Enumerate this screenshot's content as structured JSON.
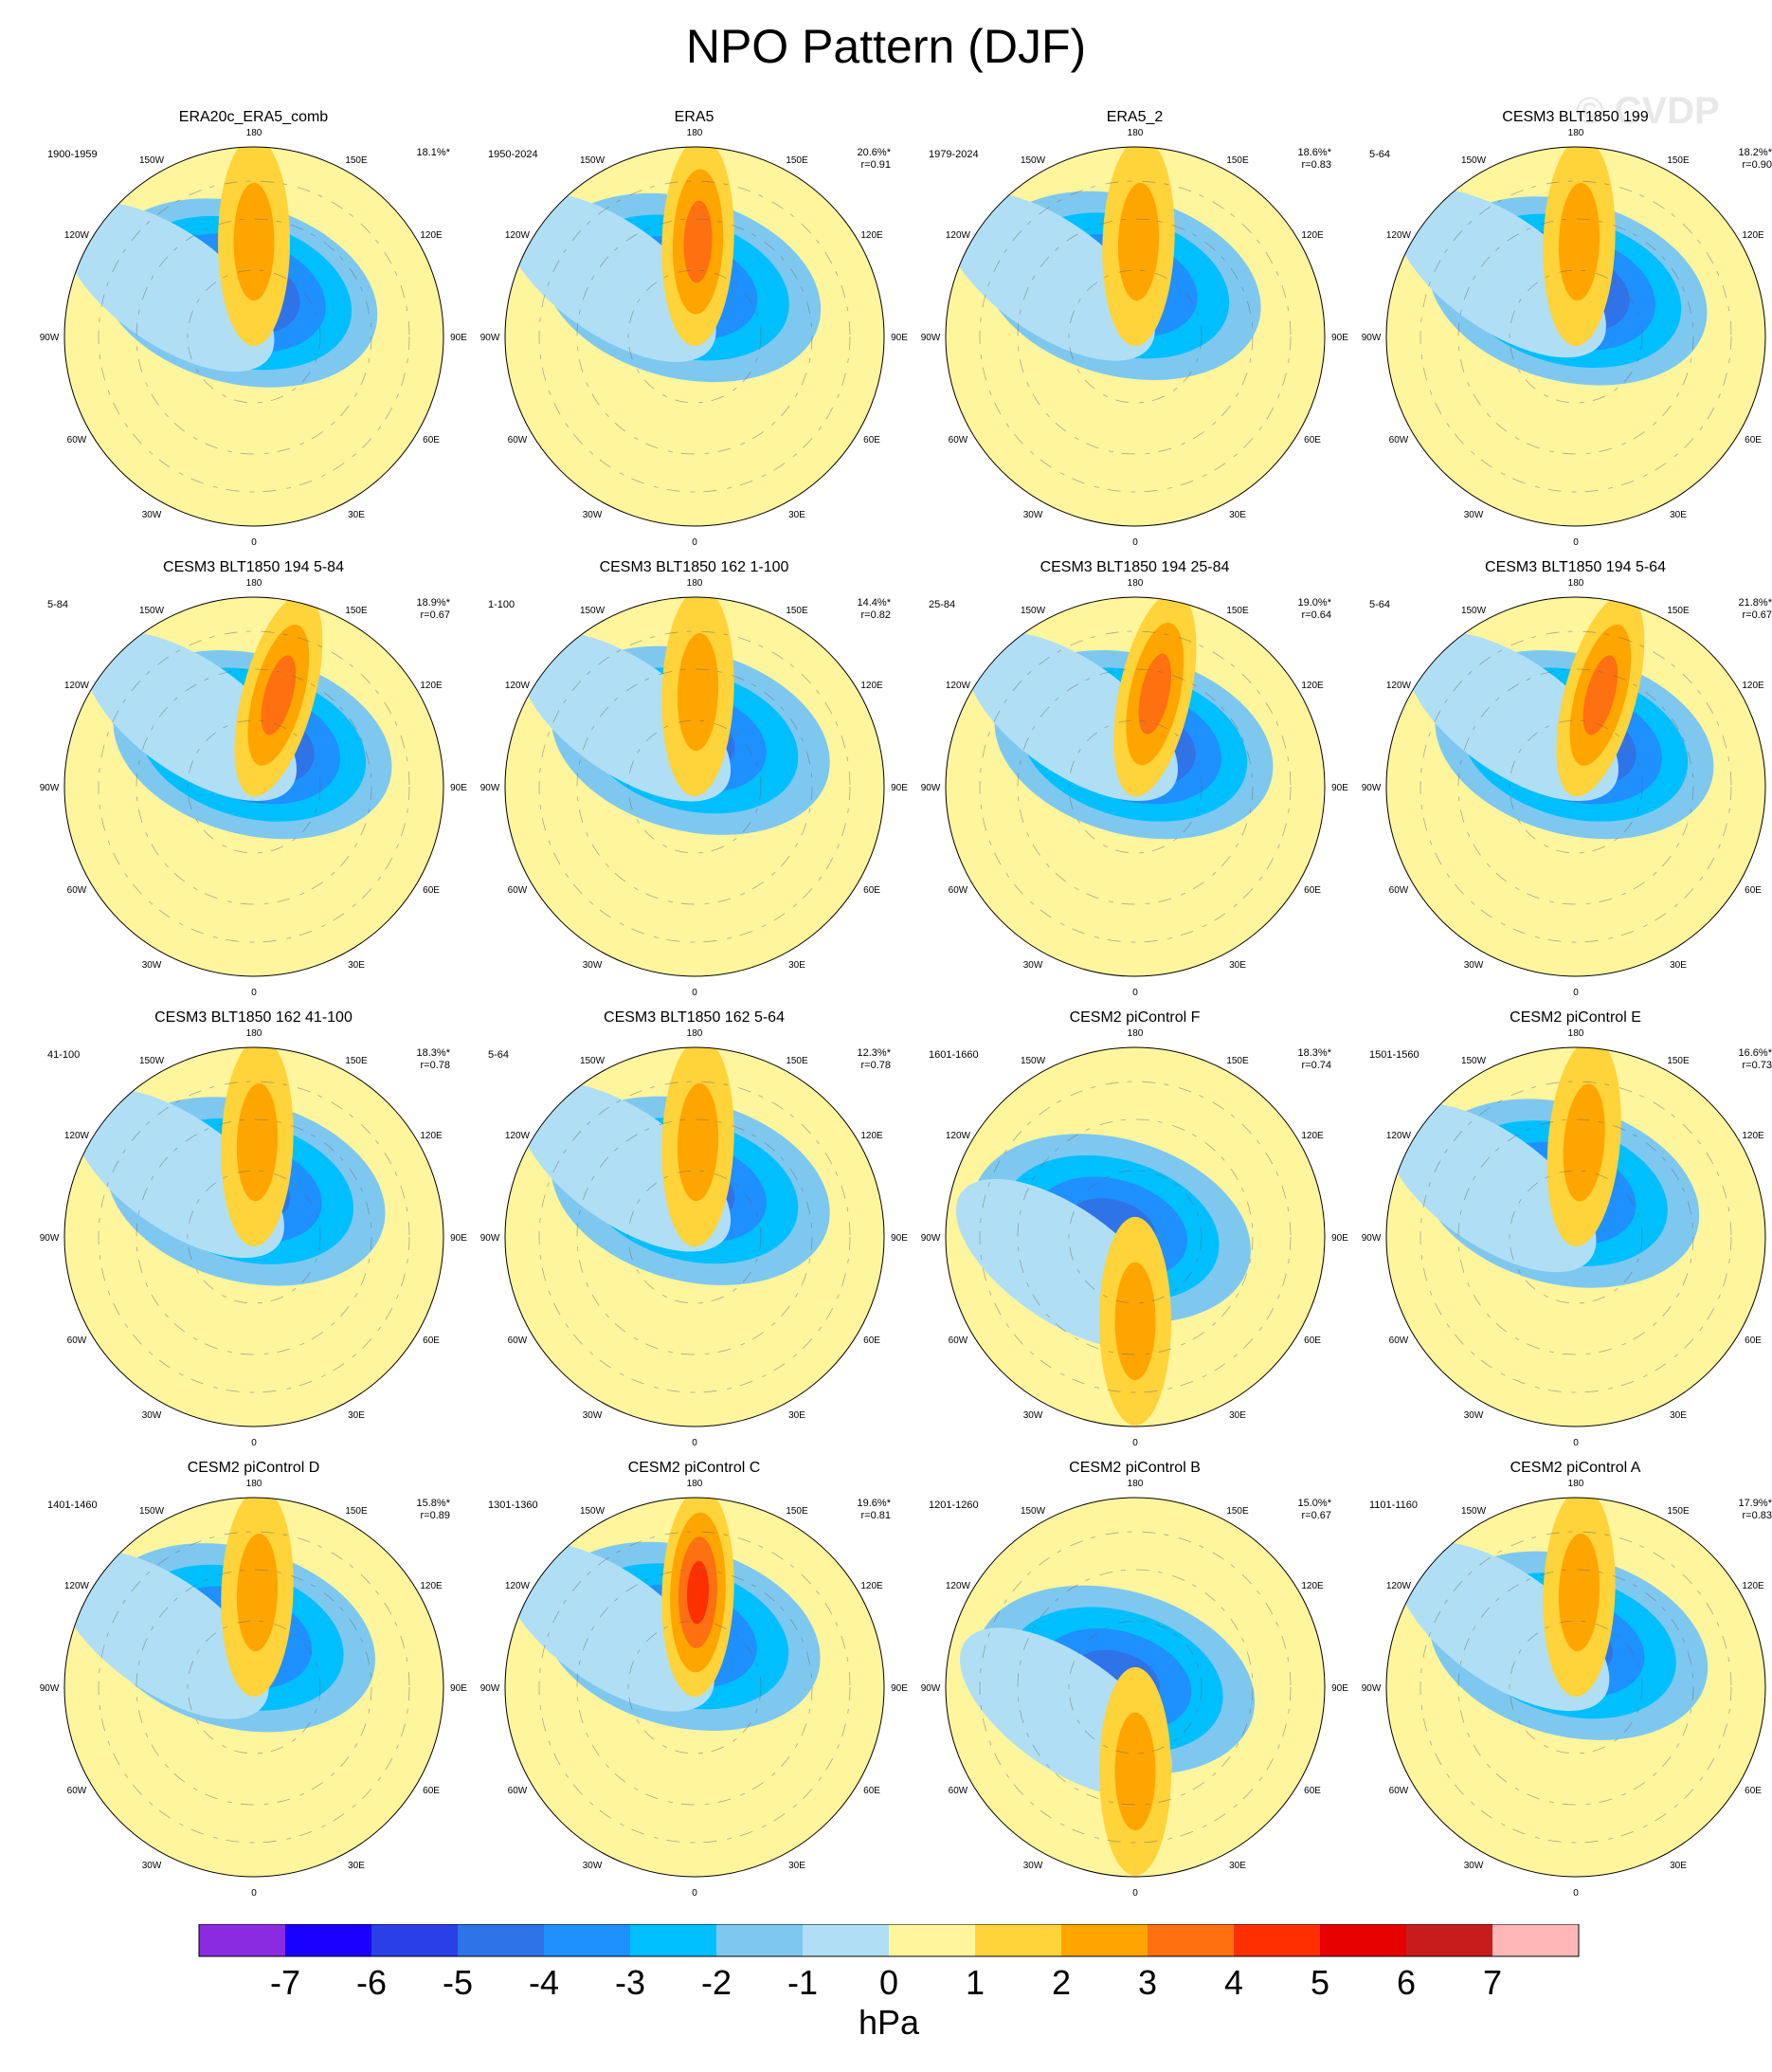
{
  "title": "NPO Pattern (DJF)",
  "watermark": "© CVDP",
  "lon_labels": [
    "180",
    "150E",
    "120E",
    "90E",
    "60E",
    "30E",
    "0",
    "30W",
    "60W",
    "90W",
    "120W",
    "150W"
  ],
  "colorbar": {
    "unit": "hPa",
    "ticks": [
      "-7",
      "-6",
      "-5",
      "-4",
      "-3",
      "-2",
      "-1",
      "0",
      "1",
      "2",
      "3",
      "4",
      "5",
      "6",
      "7"
    ],
    "colors": [
      "#8a2be2",
      "#1a00ff",
      "#2a3fe6",
      "#2f73e9",
      "#1e90ff",
      "#00bfff",
      "#7ec8f0",
      "#b0dff5",
      "#fff59d",
      "#ffd33a",
      "#ffa500",
      "#ff7010",
      "#ff3000",
      "#e60000",
      "#c81c1c",
      "#ffb6b6"
    ]
  },
  "chart_data": [
    {
      "type": "heatmap",
      "title": "ERA20c_ERA5_comb",
      "years": "1900-1959",
      "variance": "18.1%*",
      "r": "",
      "min_hPa": -5,
      "high_hPa": 2,
      "low_lon": -160,
      "low_colat": 22,
      "high_lon": 180,
      "high_colat": 45
    },
    {
      "type": "heatmap",
      "title": "ERA5",
      "years": "1950-2024",
      "variance": "20.6%*",
      "r": "r=0.91",
      "min_hPa": -4,
      "high_hPa": 3,
      "low_lon": -165,
      "low_colat": 24,
      "high_lon": 178,
      "high_colat": 45
    },
    {
      "type": "heatmap",
      "title": "ERA5_2",
      "years": "1979-2024",
      "variance": "18.6%*",
      "r": "r=0.83",
      "min_hPa": -4,
      "high_hPa": 2,
      "low_lon": -165,
      "low_colat": 25,
      "high_lon": 178,
      "high_colat": 45
    },
    {
      "type": "heatmap",
      "title": "CESM3 BLT1850 199",
      "years": "5-64",
      "variance": "18.2%*",
      "r": "r=0.90",
      "min_hPa": -5,
      "high_hPa": 2,
      "low_lon": -170,
      "low_colat": 22,
      "high_lon": 178,
      "high_colat": 45
    },
    {
      "type": "heatmap",
      "title": "CESM3 BLT1850 194 5-84",
      "years": "5-84",
      "variance": "18.9%*",
      "r": "r=0.67",
      "min_hPa": -5,
      "high_hPa": 3,
      "low_lon": -178,
      "low_colat": 20,
      "high_lon": 165,
      "high_colat": 45
    },
    {
      "type": "heatmap",
      "title": "CESM3 BLT1850 162 1-100",
      "years": "1-100",
      "variance": "14.4%*",
      "r": "r=0.82",
      "min_hPa": -4,
      "high_hPa": 2,
      "low_lon": -175,
      "low_colat": 22,
      "high_lon": 178,
      "high_colat": 45
    },
    {
      "type": "heatmap",
      "title": "CESM3 BLT1850 194 25-84",
      "years": "25-84",
      "variance": "19.0%*",
      "r": "r=0.64",
      "min_hPa": -5,
      "high_hPa": 3,
      "low_lon": -178,
      "low_colat": 20,
      "high_lon": 168,
      "high_colat": 45
    },
    {
      "type": "heatmap",
      "title": "CESM3 BLT1850 194 5-64",
      "years": "5-64",
      "variance": "21.8%*",
      "r": "r=0.67",
      "min_hPa": -5,
      "high_hPa": 3,
      "low_lon": -178,
      "low_colat": 20,
      "high_lon": 165,
      "high_colat": 45
    },
    {
      "type": "heatmap",
      "title": "CESM3 BLT1850 162 41-100",
      "years": "41-100",
      "variance": "18.3%*",
      "r": "r=0.78",
      "min_hPa": -4,
      "high_hPa": 2,
      "low_lon": -170,
      "low_colat": 22,
      "high_lon": 178,
      "high_colat": 45
    },
    {
      "type": "heatmap",
      "title": "CESM3 BLT1850 162 5-64",
      "years": "5-64",
      "variance": "12.3%*",
      "r": "r=0.78",
      "min_hPa": -4,
      "high_hPa": 2,
      "low_lon": -175,
      "low_colat": 22,
      "high_lon": 178,
      "high_colat": 45
    },
    {
      "type": "heatmap",
      "title": "CESM2 piControl F",
      "years": "1601-1660",
      "variance": "18.3%*",
      "r": "r=0.74",
      "min_hPa": -4,
      "high_hPa": 2,
      "low_lon": -110,
      "low_colat": 12,
      "high_lon": 0,
      "high_colat": 40
    },
    {
      "type": "heatmap",
      "title": "CESM2 piControl E",
      "years": "1501-1560",
      "variance": "16.6%*",
      "r": "r=0.73",
      "min_hPa": -4,
      "high_hPa": 2,
      "low_lon": -160,
      "low_colat": 22,
      "high_lon": 175,
      "high_colat": 45
    },
    {
      "type": "heatmap",
      "title": "CESM2 piControl D",
      "years": "1401-1460",
      "variance": "15.8%*",
      "r": "r=0.89",
      "min_hPa": -4,
      "high_hPa": 2,
      "low_lon": -160,
      "low_colat": 25,
      "high_lon": 178,
      "high_colat": 45
    },
    {
      "type": "heatmap",
      "title": "CESM2 piControl C",
      "years": "1301-1360",
      "variance": "19.6%*",
      "r": "r=0.81",
      "min_hPa": -4,
      "high_hPa": 4,
      "low_lon": -165,
      "low_colat": 25,
      "high_lon": 178,
      "high_colat": 45
    },
    {
      "type": "heatmap",
      "title": "CESM2 piControl B",
      "years": "1201-1260",
      "variance": "15.0%*",
      "r": "r=0.67",
      "min_hPa": -4,
      "high_hPa": 2,
      "low_lon": -110,
      "low_colat": 10,
      "high_lon": 0,
      "high_colat": 40
    },
    {
      "type": "heatmap",
      "title": "CESM2 piControl A",
      "years": "1101-1160",
      "variance": "17.9%*",
      "r": "r=0.83",
      "min_hPa": -4,
      "high_hPa": 2,
      "low_lon": -170,
      "low_colat": 20,
      "high_lon": 178,
      "high_colat": 45
    }
  ]
}
